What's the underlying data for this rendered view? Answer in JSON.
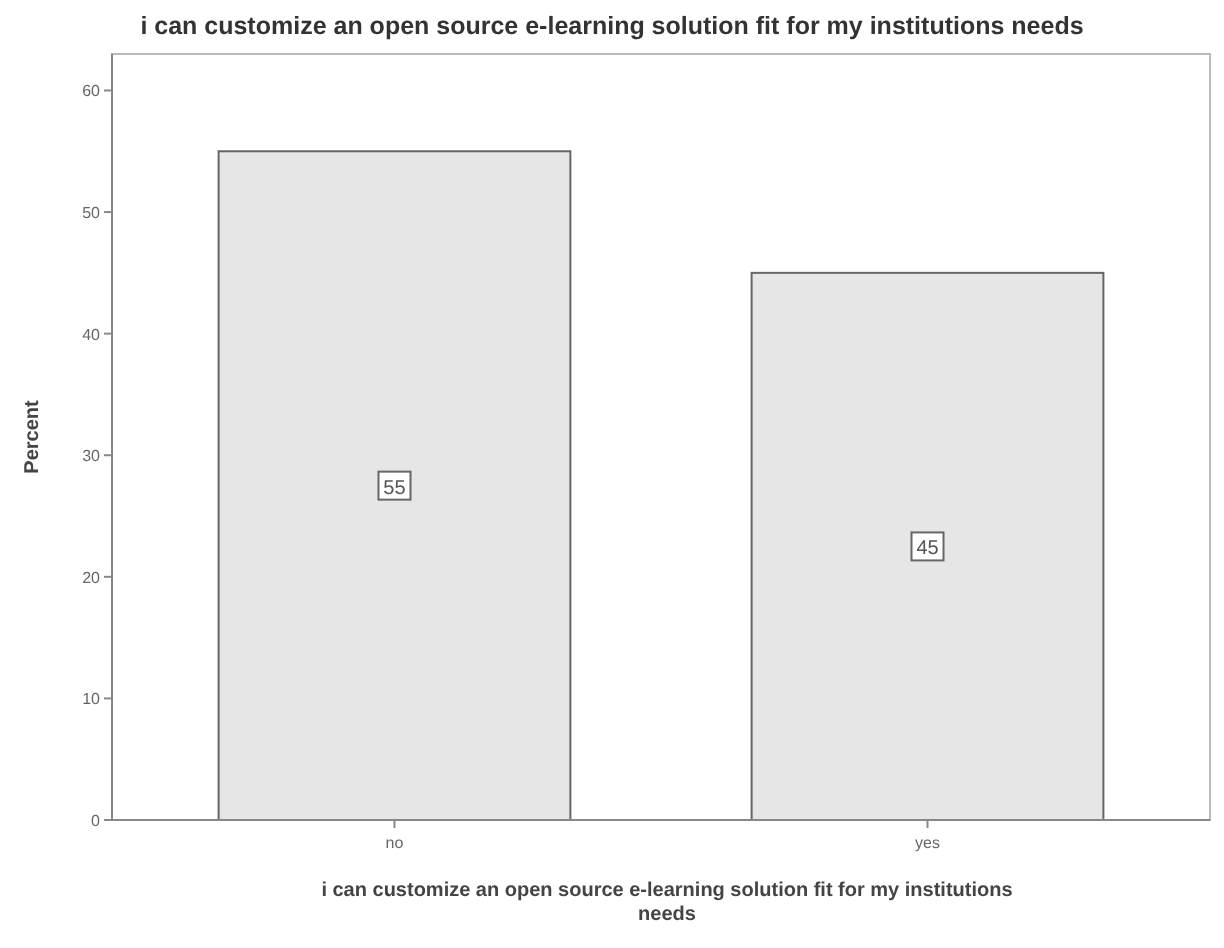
{
  "chart_data": {
    "type": "bar",
    "title": "i can customize an open source e-learning solution fit for my institutions needs",
    "xlabel": "i can customize an open source e-learning solution fit for my institutions needs",
    "ylabel": "Percent",
    "categories": [
      "no",
      "yes"
    ],
    "values": [
      55,
      45
    ],
    "color": "#e6e6e6",
    "ylim": [
      0,
      63
    ],
    "yticks": [
      0,
      10,
      20,
      30,
      40,
      50,
      60
    ],
    "data_labels": true,
    "grid": false
  }
}
